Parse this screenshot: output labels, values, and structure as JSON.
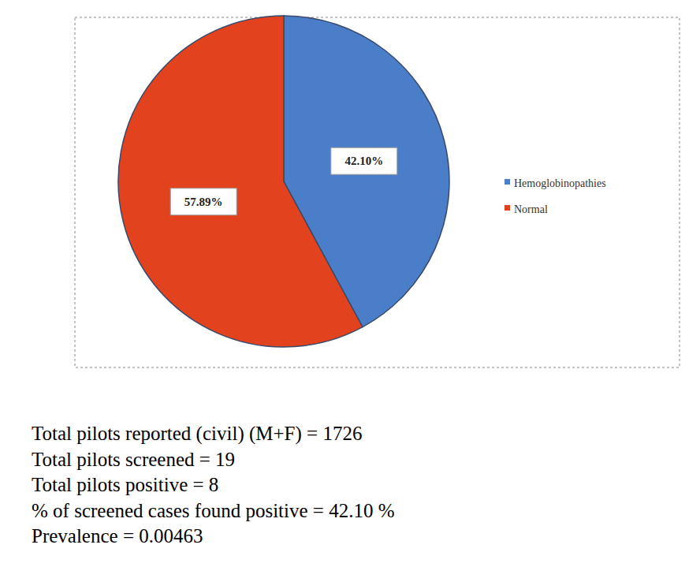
{
  "chart_data": {
    "type": "pie",
    "categories": [
      "Hemoglobinopathies",
      "Normal"
    ],
    "values": [
      42.1,
      57.89
    ],
    "value_labels": [
      "42.10%",
      "57.89%"
    ],
    "colors": [
      "#4a7ec8",
      "#e2431e"
    ],
    "legend": "right",
    "data_labels": true,
    "annotations": [
      "Total pilots reported (civil) (M+F) = 1726",
      "Total pilots screened = 19",
      "Total pilots positive = 8",
      "% of screened cases found positive = 42.10 %",
      "Prevalence = 0.00463"
    ]
  }
}
